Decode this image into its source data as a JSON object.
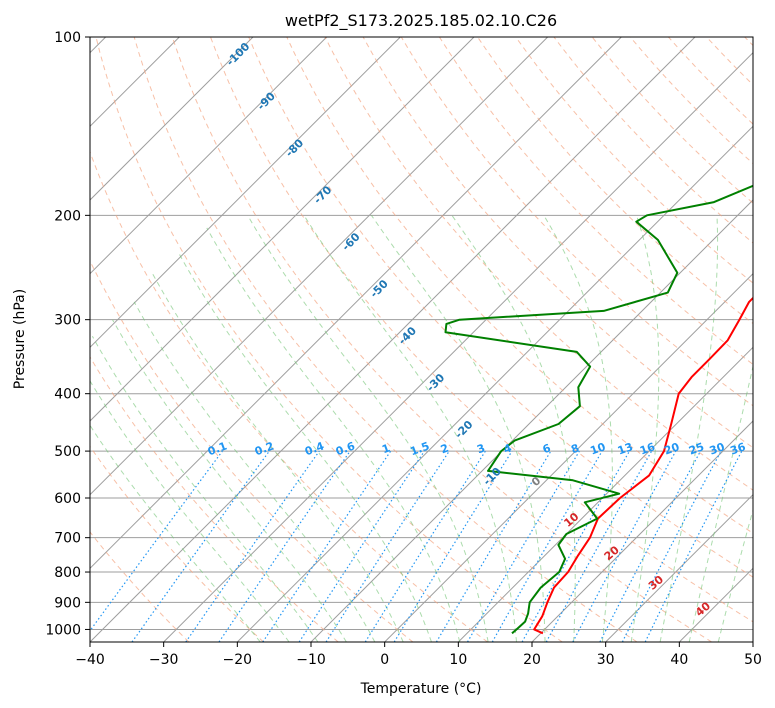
{
  "chart_data": {
    "type": "line",
    "title": "wetPf2_S173.2025.185.02.10.C26",
    "xlabel": "Temperature (°C)",
    "ylabel": "Pressure (hPa)",
    "xlim": [
      -40,
      50
    ],
    "ylim": [
      1050,
      100
    ],
    "y_scale": "log",
    "x_ticks": [
      "−40",
      "−30",
      "−20",
      "−10",
      "0",
      "10",
      "20",
      "30",
      "40",
      "50"
    ],
    "y_ticks": [
      {
        "p": 100,
        "label": "100"
      },
      {
        "p": 200,
        "label": "200"
      },
      {
        "p": 300,
        "label": "300"
      },
      {
        "p": 400,
        "label": "400"
      },
      {
        "p": 500,
        "label": "500"
      },
      {
        "p": 600,
        "label": "600"
      },
      {
        "p": 700,
        "label": "700"
      },
      {
        "p": 800,
        "label": "800"
      },
      {
        "p": 900,
        "label": "900"
      },
      {
        "p": 1000,
        "label": "1000"
      }
    ],
    "grid": true,
    "series": [
      {
        "color": "#ff0000",
        "points": [
          {
            "x": 20.3,
            "p": 1015
          },
          {
            "x": 18.6,
            "p": 1000
          },
          {
            "x": 17.9,
            "p": 950
          },
          {
            "x": 16.7,
            "p": 900
          },
          {
            "x": 15.6,
            "p": 850
          },
          {
            "x": 15.4,
            "p": 800
          },
          {
            "x": 14.5,
            "p": 750
          },
          {
            "x": 13.7,
            "p": 700
          },
          {
            "x": 12.2,
            "p": 650
          },
          {
            "x": 12.4,
            "p": 600
          },
          {
            "x": 13.3,
            "p": 550
          },
          {
            "x": 12.0,
            "p": 500
          },
          {
            "x": 9.3,
            "p": 450
          },
          {
            "x": 6.2,
            "p": 400
          },
          {
            "x": 5.7,
            "p": 375
          },
          {
            "x": 5.7,
            "p": 350
          },
          {
            "x": 5.6,
            "p": 325
          },
          {
            "x": 4.4,
            "p": 300
          },
          {
            "x": 3.3,
            "p": 280
          },
          {
            "x": 3.3,
            "p": 250
          },
          {
            "x": 4.4,
            "p": 225
          },
          {
            "x": 6.0,
            "p": 200
          },
          {
            "x": 6.0,
            "p": 180
          },
          {
            "x": 6.5,
            "p": 165
          },
          {
            "x": 8.1,
            "p": 150
          },
          {
            "x": 9.1,
            "p": 140
          },
          {
            "x": 9.4,
            "p": 130
          },
          {
            "x": 8.8,
            "p": 120
          },
          {
            "x": 10.6,
            "p": 110
          },
          {
            "x": 14.6,
            "p": 100
          }
        ]
      },
      {
        "color": "#008000",
        "points": [
          {
            "x": 16.1,
            "p": 1015
          },
          {
            "x": 16.2,
            "p": 1000
          },
          {
            "x": 16.3,
            "p": 970
          },
          {
            "x": 15.6,
            "p": 940
          },
          {
            "x": 14.3,
            "p": 900
          },
          {
            "x": 13.8,
            "p": 850
          },
          {
            "x": 14.2,
            "p": 800
          },
          {
            "x": 13.2,
            "p": 760
          },
          {
            "x": 10.4,
            "p": 720
          },
          {
            "x": 10.0,
            "p": 690
          },
          {
            "x": 12.1,
            "p": 650
          },
          {
            "x": 8.2,
            "p": 610
          },
          {
            "x": 11.7,
            "p": 590
          },
          {
            "x": 3.6,
            "p": 560
          },
          {
            "x": -9.2,
            "p": 540
          },
          {
            "x": -10.1,
            "p": 500
          },
          {
            "x": -9.7,
            "p": 480
          },
          {
            "x": -6.0,
            "p": 450
          },
          {
            "x": -5.5,
            "p": 420
          },
          {
            "x": -8.3,
            "p": 390
          },
          {
            "x": -9.5,
            "p": 360
          },
          {
            "x": -13.3,
            "p": 340
          },
          {
            "x": -33.8,
            "p": 315
          },
          {
            "x": -34.8,
            "p": 305
          },
          {
            "x": -33.6,
            "p": 300
          },
          {
            "x": -15.2,
            "p": 290
          },
          {
            "x": -9.0,
            "p": 270
          },
          {
            "x": -10.4,
            "p": 250
          },
          {
            "x": -17.5,
            "p": 220
          },
          {
            "x": -22.9,
            "p": 205
          },
          {
            "x": -22.3,
            "p": 200
          },
          {
            "x": -15.0,
            "p": 190
          },
          {
            "x": -11.0,
            "p": 175
          },
          {
            "x": -8.8,
            "p": 160
          },
          {
            "x": -7.8,
            "p": 150
          },
          {
            "x": -7.2,
            "p": 140
          },
          {
            "x": -7.3,
            "p": 130
          },
          {
            "x": -5.2,
            "p": 122
          },
          {
            "x": -1.0,
            "p": 115
          },
          {
            "x": 0.7,
            "p": 105
          },
          {
            "x": 0.4,
            "p": 100
          }
        ]
      }
    ],
    "mixing_ratio_labels": [
      "0.1",
      "0.2",
      "0.4",
      "0.6",
      "1",
      "1.5",
      "2",
      "3",
      "4",
      "6",
      "8",
      "10",
      "13",
      "16",
      "20",
      "25",
      "30",
      "36"
    ],
    "dry_adiabat_labels": [
      "-100",
      "-90",
      "-80",
      "-70",
      "-60",
      "-50",
      "-40",
      "-30",
      "-20",
      "-10"
    ],
    "moist_adiabat_labels": [
      "0",
      "10",
      "20",
      "30",
      "40"
    ],
    "colors": {
      "temperature": "#ff0000",
      "dewpoint": "#008000",
      "isotherm": "#9e9e9e",
      "dry_adiabat": "#f4a582",
      "moist_adiabat": "#74c476",
      "mixing_ratio": "#2196f3"
    }
  }
}
